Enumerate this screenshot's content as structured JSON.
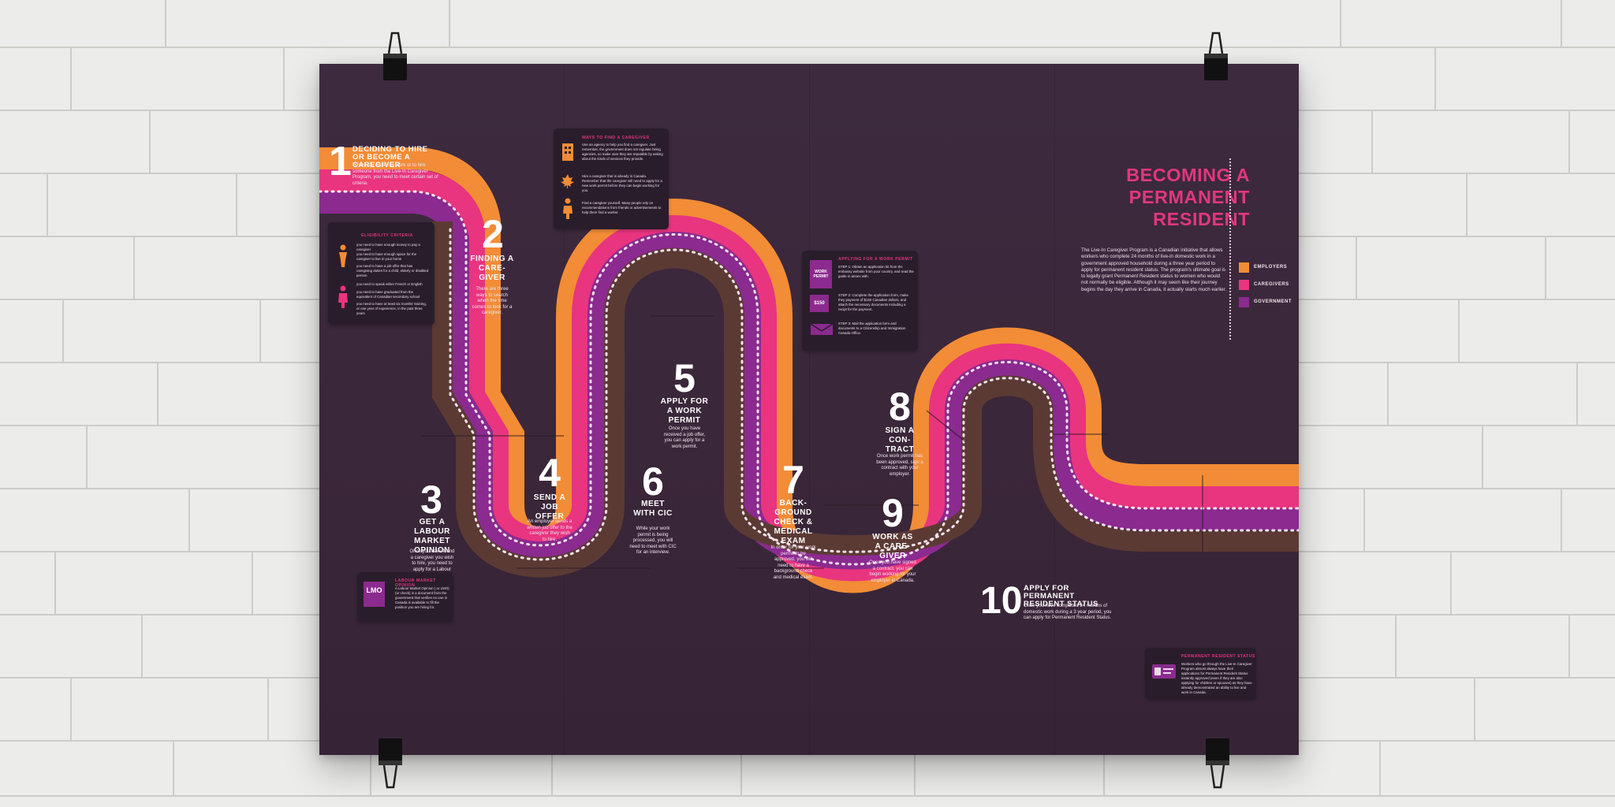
{
  "title": {
    "lines": [
      "BECOMING A",
      "PERMANENT",
      "RESIDENT"
    ]
  },
  "intro": "The Live-In Caregiver Program is a Canadian initiative that allows workers who complete 24 months of live-in domestic work in a government approved household during a three year period to apply for permanent resident status. The program's ultimate goal is to legally grant Permanent Resident status to women who would not normally be eligible. Although it may seem like their journey begins the day they arrive in Canada, it actually starts much earlier.",
  "legend": [
    {
      "label": "EMPLOYERS",
      "color": "#f28c36"
    },
    {
      "label": "CAREGIVERS",
      "color": "#e9347f"
    },
    {
      "label": "GOVERNMENT",
      "color": "#8b2a8f"
    }
  ],
  "colors": {
    "orange": "#f28c36",
    "pink": "#e9347f",
    "purple": "#8b2a8f",
    "brown": "#5c3a34",
    "dark": "#3e2538",
    "deep": "#4b2446"
  },
  "steps": [
    {
      "num": "1",
      "title": "DECIDING TO HIRE OR BECOME A CAREGIVER",
      "body": "When you decide to work or to hire someone from the Live-In Caregiver Program, you need to meet certain set of criteria."
    },
    {
      "num": "2",
      "title": "FINDING A CARE-GIVER",
      "body": "There are three ways to search when the time comes to look for a caregiver."
    },
    {
      "num": "3",
      "title": "GET A LABOUR MARKET OPINION",
      "body": "Once you have found a caregiver you wish to hire, you need to apply for a Labour Market Opinion."
    },
    {
      "num": "4",
      "title": "SEND A JOB OFFER",
      "body": "An employer sends a written job offer to the caregiver they wish to hire."
    },
    {
      "num": "5",
      "title": "APPLY FOR A WORK PERMIT",
      "body": "Once you have received a job offer, you can apply for a work permit."
    },
    {
      "num": "6",
      "title": "MEET WITH CIC",
      "body": "While your work permit is being processed, you will need to meet with CIC for an interview."
    },
    {
      "num": "7",
      "title": "BACK-GROUND CHECK & MEDICAL EXAM",
      "body": "In order for your work permit to be approved, you will need to have a background check and medical exam."
    },
    {
      "num": "8",
      "title": "SIGN A CON-TRACT",
      "body": "Once work permit has been approved, sign a contract with your employer."
    },
    {
      "num": "9",
      "title": "WORK AS A CARE-GIVER",
      "body": "Once you have signed a contract, you can begin working for your employer in Canada."
    },
    {
      "num": "10",
      "title": "APPLY FOR PERMANENT RESIDENT STATUS",
      "body": "Once you have completed 24 months of domestic work during a 3 year period, you can apply for Permanent Resident Status."
    }
  ],
  "boxes": {
    "eligibility": {
      "heading": "ELIGIBILITY CRITERIA",
      "items": [
        "you need to have enough money to pay a caregiver",
        "you need to have enough space for the caregiver to live in your home",
        "you need to have a job offer that has caregiving duties for a child, elderly or disabled person",
        "you need to speak either French or English",
        "you need to have graduated from the equivalent of Canadian secondary school",
        "you need to have at least six months' training, or one year of experience, in the past three years"
      ]
    },
    "ways": {
      "heading": "WAYS TO FIND A CAREGIVER",
      "items": [
        "Use an agency to help you find a caregiver. Just remember, the government does not regulate hiring agencies, so make sure they are reputable by asking about the kinds of services they provide.",
        "Hire a caregiver that is already in Canada. Remember that the caregiver will need to apply for a new work permit before they can begin working for you.",
        "Find a caregiver yourself. Many people rely on recommendations from friends or advertisements to help them find a worker."
      ]
    },
    "permit": {
      "heading": "APPLYING FOR A WORK PERMIT",
      "permit_label": "WORK PERMIT",
      "fee_label": "$150",
      "items": [
        "STEP 1: Obtain an application kit from the embassy website from your country, and read the guide in annex with.",
        "STEP 2: Complete the application form, make they payment of $150 Canadian dollars, and attach the necessary documents including a recipt for the payment.",
        "STEP 3: Mail the application form and documents to a Citizenship and Immigration Canada Office."
      ]
    },
    "lmo": {
      "heading": "LABOUR MARKET OPINION",
      "icon_label": "LMO",
      "text": "A Labour Market Opinion ( or LMO) (or check) is a document from the government that verifies no one in Canada is available to fill the position you are hiring for."
    },
    "pr": {
      "heading": "PERMANENT RESIDENT STATUS",
      "text": "Workers who go through the Live-In Caregiver Program almost always have their applications for Permanent Resident Status instantly approved (even if they are also applying for children or spouses) as they have already demonstrated an ability to live and work in Canada."
    }
  }
}
